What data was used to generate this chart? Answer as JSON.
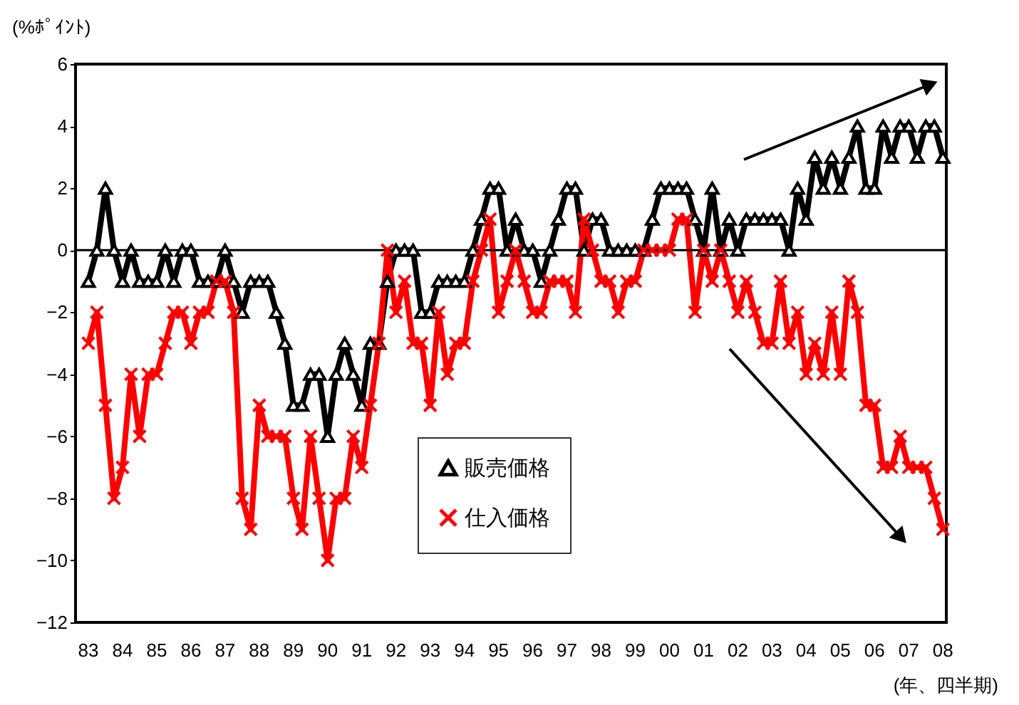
{
  "chart_data": {
    "type": "line",
    "ylabel": "(%ﾎﾟｲﾝﾄ)",
    "xlabel": "(年、四半期)",
    "categories": [
      "83",
      null,
      null,
      null,
      "84",
      null,
      null,
      null,
      "85",
      null,
      null,
      null,
      "86",
      null,
      null,
      null,
      "87",
      null,
      null,
      null,
      "88",
      null,
      null,
      null,
      "89",
      null,
      null,
      null,
      "90",
      null,
      null,
      null,
      "91",
      null,
      null,
      null,
      "92",
      null,
      null,
      null,
      "93",
      null,
      null,
      null,
      "94",
      null,
      null,
      null,
      "95",
      null,
      null,
      null,
      "96",
      null,
      null,
      null,
      "97",
      null,
      null,
      null,
      "98",
      null,
      null,
      null,
      "99",
      null,
      null,
      null,
      "00",
      null,
      null,
      null,
      "01",
      null,
      null,
      null,
      "02",
      null,
      null,
      null,
      "03",
      null,
      null,
      null,
      "04",
      null,
      null,
      null,
      "05",
      null,
      null,
      null,
      "06",
      null,
      null,
      null,
      "07",
      null,
      null,
      null,
      "08"
    ],
    "series": [
      {
        "name": "販売価格",
        "color": "#000000",
        "marker": "triangle",
        "values": [
          -1,
          0,
          2,
          0,
          -1,
          0,
          -1,
          -1,
          -1,
          0,
          -1,
          0,
          0,
          -1,
          -1,
          -1,
          0,
          -1,
          -2,
          -1,
          -1,
          -1,
          -2,
          -3,
          -5,
          -5,
          -4,
          -4,
          -6,
          -4,
          -3,
          -4,
          -5,
          -3,
          -3,
          -1,
          0,
          0,
          0,
          -2,
          -2,
          -1,
          -1,
          -1,
          -1,
          0,
          1,
          2,
          2,
          0,
          1,
          0,
          0,
          -1,
          0,
          1,
          2,
          2,
          0,
          1,
          1,
          0,
          0,
          0,
          0,
          0,
          1,
          2,
          2,
          2,
          2,
          1,
          0,
          2,
          0,
          1,
          0,
          1,
          1,
          1,
          1,
          1,
          0,
          2,
          1,
          3,
          2,
          3,
          2,
          3,
          4,
          2,
          2,
          4,
          3,
          4,
          4,
          3,
          4,
          4,
          3
        ]
      },
      {
        "name": "仕入価格",
        "color": "#ff0000",
        "marker": "cross",
        "values": [
          -3,
          -2,
          -5,
          -8,
          -7,
          -4,
          -6,
          -4,
          -4,
          -3,
          -2,
          -2,
          -3,
          -2,
          -2,
          -1,
          -1,
          -2,
          -8,
          -9,
          -5,
          -6,
          -6,
          -6,
          -8,
          -9,
          -6,
          -8,
          -10,
          -8,
          -8,
          -6,
          -7,
          -5,
          -3,
          0,
          -2,
          -1,
          -3,
          -3,
          -5,
          -2,
          -4,
          -3,
          -3,
          -1,
          0,
          1,
          -2,
          -1,
          0,
          -1,
          -2,
          -2,
          -1,
          -1,
          -1,
          -2,
          1,
          0,
          -1,
          -1,
          -2,
          -1,
          -1,
          0,
          0,
          0,
          0,
          1,
          1,
          -2,
          0,
          -1,
          0,
          -1,
          -2,
          -1,
          -2,
          -3,
          -3,
          -1,
          -3,
          -2,
          -4,
          -3,
          -4,
          -2,
          -4,
          -1,
          -2,
          -5,
          -5,
          -7,
          -7,
          -6,
          -7,
          -7,
          -7,
          -8,
          -9
        ]
      }
    ],
    "ylim": [
      -12,
      6
    ],
    "yticks": [
      -12,
      -10,
      -8,
      -6,
      -4,
      -2,
      0,
      2,
      4,
      6
    ],
    "ref_lines": [
      {
        "axis": "y",
        "value": 0,
        "label": null,
        "color": "#000000"
      }
    ],
    "grid": false,
    "legend": "bottom",
    "line_style": "solid"
  }
}
